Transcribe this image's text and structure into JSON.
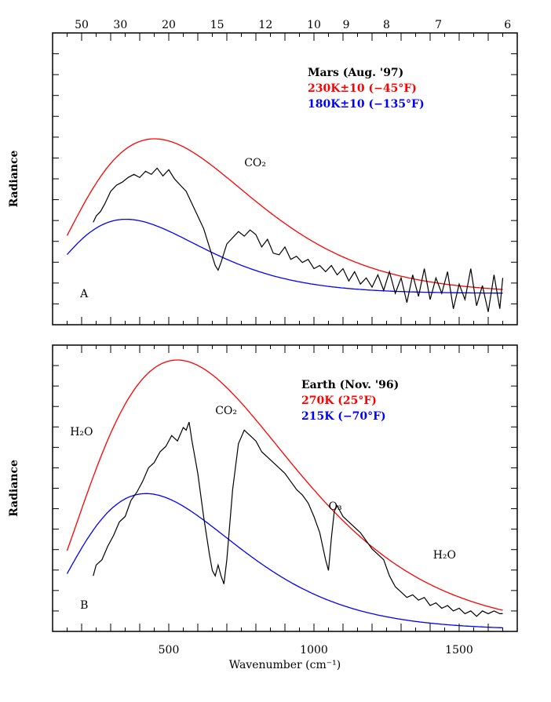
{
  "chart_data": {
    "type": "line",
    "x_range": [
      100,
      1700
    ],
    "xlabel": "Wavenumber (cm⁻¹)",
    "x_ticks": [
      500,
      1000,
      1500
    ],
    "top_axis_wavelength_ticks": [
      50,
      30,
      20,
      15,
      12,
      10,
      9,
      8,
      7,
      6
    ],
    "panels": [
      {
        "label": "A",
        "ylabel": "Radiance",
        "legend": {
          "title": "Mars (Aug. '97)",
          "red": "230K±10 (−45°F)",
          "blue": "180K±10 (−135°F)"
        },
        "annotations": [
          {
            "text": "CO₂",
            "x": 760
          }
        ],
        "series": [
          {
            "name": "230K±10 (−45°F)",
            "color": "#ff0000",
            "temperature_K": 230
          },
          {
            "name": "180K±10 (−135°F)",
            "color": "#0000ff",
            "temperature_K": 180
          },
          {
            "color": "#000000",
            "x": [
              240,
              250,
              265,
              280,
              300,
              320,
              340,
              360,
              380,
              400,
              420,
              440,
              460,
              480,
              500,
              520,
              540,
              560,
              580,
              600,
              620,
              640,
              660,
              670,
              680,
              700,
              720,
              740,
              760,
              780,
              800,
              820,
              840,
              860,
              880,
              900,
              920,
              940,
              960,
              980,
              1000,
              1020,
              1040,
              1060,
              1080,
              1100,
              1120,
              1140,
              1160,
              1180,
              1200,
              1220,
              1240,
              1260,
              1280,
              1300,
              1320,
              1340,
              1360,
              1380,
              1400,
              1420,
              1440,
              1460,
              1480,
              1500,
              1520,
              1540,
              1560,
              1580,
              1600,
              1620,
              1640,
              1650
            ],
            "y": [
              0.46,
              0.5,
              0.53,
              0.58,
              0.66,
              0.7,
              0.72,
              0.75,
              0.77,
              0.75,
              0.79,
              0.77,
              0.81,
              0.76,
              0.8,
              0.74,
              0.7,
              0.66,
              0.58,
              0.5,
              0.42,
              0.3,
              0.18,
              0.15,
              0.2,
              0.32,
              0.36,
              0.4,
              0.37,
              0.41,
              0.38,
              0.3,
              0.35,
              0.26,
              0.25,
              0.3,
              0.22,
              0.24,
              0.2,
              0.22,
              0.16,
              0.18,
              0.14,
              0.18,
              0.12,
              0.16,
              0.08,
              0.14,
              0.06,
              0.1,
              0.04,
              0.12,
              0.02,
              0.14,
              0.0,
              0.1,
              -0.06,
              0.12,
              -0.02,
              0.16,
              -0.04,
              0.1,
              0.0,
              0.14,
              -0.1,
              0.06,
              -0.04,
              0.16,
              -0.08,
              0.05,
              -0.12,
              0.12,
              -0.1,
              0.1
            ]
          }
        ]
      },
      {
        "label": "B",
        "ylabel": "Radiance",
        "legend": {
          "title": "Earth (Nov. '96)",
          "red": "270K (25°F)",
          "blue": "215K (−70°F)"
        },
        "annotations": [
          {
            "text": "H₂O",
            "x": 160
          },
          {
            "text": "CO₂",
            "x": 660
          },
          {
            "text": "O₃",
            "x": 1050
          },
          {
            "text": "H₂O",
            "x": 1410
          }
        ],
        "series": [
          {
            "name": "270K (25°F)",
            "color": "#ff0000",
            "temperature_K": 270
          },
          {
            "name": "215K (−70°F)",
            "color": "#0000ff",
            "temperature_K": 215
          },
          {
            "color": "#000000",
            "x": [
              240,
              250,
              270,
              290,
              310,
              330,
              350,
              370,
              390,
              410,
              430,
              450,
              470,
              490,
              510,
              530,
              550,
              560,
              570,
              580,
              600,
              620,
              640,
              650,
              660,
              670,
              680,
              690,
              700,
              720,
              740,
              760,
              780,
              800,
              820,
              840,
              860,
              880,
              900,
              920,
              940,
              960,
              980,
              1000,
              1020,
              1040,
              1050,
              1060,
              1070,
              1080,
              1100,
              1120,
              1140,
              1160,
              1180,
              1200,
              1220,
              1240,
              1260,
              1280,
              1300,
              1320,
              1340,
              1360,
              1380,
              1400,
              1420,
              1440,
              1460,
              1480,
              1500,
              1520,
              1540,
              1560,
              1580,
              1600,
              1620,
              1640,
              1650
            ],
            "y": [
              0.2,
              0.24,
              0.26,
              0.31,
              0.35,
              0.4,
              0.42,
              0.48,
              0.51,
              0.55,
              0.6,
              0.62,
              0.66,
              0.68,
              0.72,
              0.7,
              0.75,
              0.74,
              0.77,
              0.7,
              0.58,
              0.42,
              0.28,
              0.22,
              0.2,
              0.24,
              0.2,
              0.17,
              0.26,
              0.52,
              0.69,
              0.74,
              0.72,
              0.7,
              0.66,
              0.64,
              0.62,
              0.6,
              0.58,
              0.55,
              0.52,
              0.5,
              0.47,
              0.42,
              0.36,
              0.26,
              0.22,
              0.34,
              0.44,
              0.46,
              0.42,
              0.4,
              0.38,
              0.36,
              0.33,
              0.3,
              0.28,
              0.26,
              0.2,
              0.16,
              0.14,
              0.12,
              0.13,
              0.11,
              0.12,
              0.09,
              0.1,
              0.08,
              0.09,
              0.07,
              0.08,
              0.06,
              0.07,
              0.05,
              0.07,
              0.06,
              0.07,
              0.06,
              0.06
            ]
          }
        ]
      }
    ]
  }
}
